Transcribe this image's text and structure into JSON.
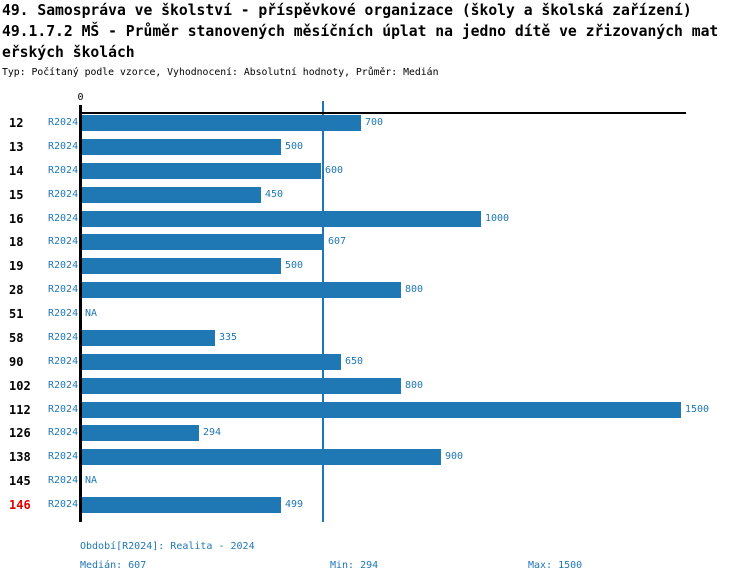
{
  "header": {
    "title_line1": "49. Samospráva ve školství - příspěvkové organizace (školy a školská zařízení)",
    "title_line2": "49.1.7.2 MŠ - Průměr stanovených měsíčních úplat na jedno dítě ve zřizovaných mat",
    "title_line3": "eřských školách",
    "subtitle": "Typ: Počítaný podle vzorce, Vyhodnocení: Absolutní hodnoty, Průměr: Medián"
  },
  "chart_data": {
    "type": "bar",
    "orientation": "horizontal",
    "title": "49.1.7.2 MŠ - Průměr stanovených měsíčních úplat na jedno dítě ve zřizovaných mateřských školách",
    "xlabel": "",
    "ylabel": "",
    "xlim": [
      0,
      1515
    ],
    "zero_tick_label": "0",
    "na_label": "NA",
    "median_reference_line": 607,
    "grid": false,
    "legend_position": "none",
    "categories": [
      "12",
      "13",
      "14",
      "15",
      "16",
      "18",
      "19",
      "28",
      "51",
      "58",
      "90",
      "102",
      "112",
      "126",
      "138",
      "145",
      "146"
    ],
    "series_label": "R2024",
    "rows": [
      {
        "id": "12",
        "period": "R2024",
        "value": 700
      },
      {
        "id": "13",
        "period": "R2024",
        "value": 500
      },
      {
        "id": "14",
        "period": "R2024",
        "value": 600
      },
      {
        "id": "15",
        "period": "R2024",
        "value": 450
      },
      {
        "id": "16",
        "period": "R2024",
        "value": 1000
      },
      {
        "id": "18",
        "period": "R2024",
        "value": 607
      },
      {
        "id": "19",
        "period": "R2024",
        "value": 500
      },
      {
        "id": "28",
        "period": "R2024",
        "value": 800
      },
      {
        "id": "51",
        "period": "R2024",
        "value": null
      },
      {
        "id": "58",
        "period": "R2024",
        "value": 335
      },
      {
        "id": "90",
        "period": "R2024",
        "value": 650
      },
      {
        "id": "102",
        "period": "R2024",
        "value": 800
      },
      {
        "id": "112",
        "period": "R2024",
        "value": 1500
      },
      {
        "id": "126",
        "period": "R2024",
        "value": 294
      },
      {
        "id": "138",
        "period": "R2024",
        "value": 900
      },
      {
        "id": "145",
        "period": "R2024",
        "value": null
      },
      {
        "id": "146",
        "period": "R2024",
        "value": 499,
        "highlight": true
      }
    ]
  },
  "footer": {
    "period_info": "Období[R2024]: Realita - 2024",
    "median": "Medián: 607",
    "min": "Min: 294",
    "max": "Max: 1500"
  },
  "colors": {
    "bar_blue": "#1f77b4",
    "text_blue": "#1f77b4",
    "highlight_red": "#e10000",
    "axis_black": "#000000",
    "background": "#ffffff"
  }
}
